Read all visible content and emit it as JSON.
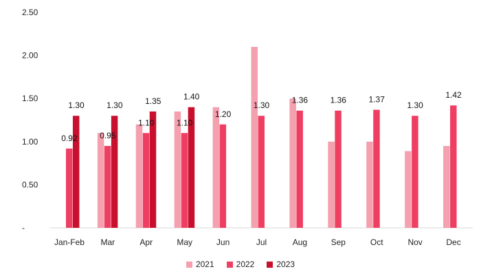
{
  "chart_data": {
    "type": "bar",
    "categories": [
      "Jan-Feb",
      "Mar",
      "Apr",
      "May",
      "Jun",
      "Jul",
      "Aug",
      "Sep",
      "Oct",
      "Nov",
      "Dec"
    ],
    "series": [
      {
        "name": "2021",
        "color": "#F4A0AE",
        "values": [
          null,
          1.1,
          1.2,
          1.35,
          1.4,
          2.1,
          1.5,
          1.0,
          1.0,
          0.89,
          0.95
        ],
        "labels": [
          null,
          null,
          null,
          null,
          null,
          null,
          null,
          null,
          null,
          null,
          null
        ]
      },
      {
        "name": "2022",
        "color": "#EE3F63",
        "values": [
          0.92,
          0.95,
          1.1,
          1.1,
          1.2,
          1.3,
          1.36,
          1.36,
          1.37,
          1.3,
          1.42
        ],
        "labels": [
          "0.92",
          "0.95",
          "1.10",
          "1.10",
          "1.20",
          "1.30",
          "1.36",
          "1.36",
          "1.37",
          "1.30",
          "1.42"
        ]
      },
      {
        "name": "2023",
        "color": "#C8102E",
        "values": [
          1.3,
          1.3,
          1.35,
          1.4,
          null,
          null,
          null,
          null,
          null,
          null,
          null
        ],
        "labels": [
          "1.30",
          "1.30",
          "1.35",
          "1.40",
          null,
          null,
          null,
          null,
          null,
          null,
          null
        ]
      }
    ],
    "yticks": [
      "-",
      "0.50",
      "1.00",
      "1.50",
      "2.00",
      "2.50"
    ],
    "ylim": [
      0,
      2.5
    ],
    "grid": false,
    "legend_position": "bottom"
  }
}
